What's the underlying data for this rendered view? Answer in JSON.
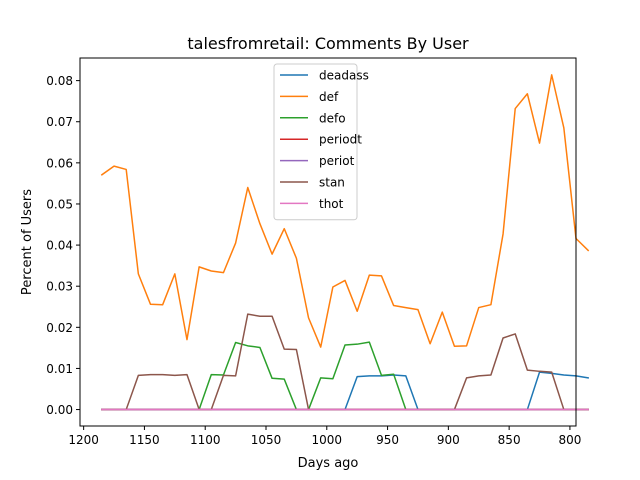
{
  "chart_data": {
    "type": "line",
    "title": "talesfromretail: Comments By User",
    "xlabel": "Days ago",
    "ylabel": "Percent of Users",
    "xlim": [
      1203,
      795
    ],
    "ylim": [
      -0.004,
      0.0855
    ],
    "x_inverted": true,
    "grid": false,
    "legend_position": "upper center",
    "xticks": [
      1200,
      1150,
      1100,
      1050,
      1000,
      950,
      900,
      850,
      800
    ],
    "xtick_labels": [
      "1200",
      "1150",
      "1100",
      "1050",
      "1000",
      "950",
      "900",
      "850",
      "800"
    ],
    "yticks": [
      0.0,
      0.01,
      0.02,
      0.03,
      0.04,
      0.05,
      0.06,
      0.07,
      0.08
    ],
    "ytick_labels": [
      "0.00",
      "0.01",
      "0.02",
      "0.03",
      "0.04",
      "0.05",
      "0.06",
      "0.07",
      "0.08"
    ],
    "x": [
      1185,
      1175,
      1165,
      1155,
      1145,
      1135,
      1125,
      1115,
      1105,
      1095,
      1085,
      1075,
      1065,
      1055,
      1045,
      1035,
      1025,
      1015,
      1005,
      995,
      985,
      975,
      965,
      955,
      945,
      935,
      925,
      915,
      905,
      895,
      885,
      875,
      865,
      855,
      845,
      835,
      825,
      815,
      805,
      795,
      785
    ],
    "series": [
      {
        "name": "deadass",
        "color": "#1f77b4",
        "values": [
          0,
          0,
          0,
          0,
          0,
          0,
          0,
          0,
          0,
          0,
          0,
          0,
          0,
          0,
          0,
          0,
          0,
          0,
          0,
          0,
          0,
          0.008,
          0.0082,
          0.0082,
          0.0084,
          0.0082,
          0,
          0,
          0,
          0,
          0,
          0,
          0,
          0,
          0,
          0,
          0.0091,
          0.0088,
          0.0084,
          0.0082,
          0.0077
        ]
      },
      {
        "name": "def",
        "color": "#ff7f0e",
        "values": [
          0.0571,
          0.0592,
          0.0584,
          0.033,
          0.0256,
          0.0255,
          0.033,
          0.017,
          0.0347,
          0.0337,
          0.0333,
          0.0405,
          0.054,
          0.0452,
          0.0378,
          0.044,
          0.0368,
          0.0223,
          0.0152,
          0.0298,
          0.0314,
          0.0239,
          0.0327,
          0.0325,
          0.0253,
          0.0248,
          0.0243,
          0.016,
          0.0237,
          0.0154,
          0.0155,
          0.0248,
          0.0255,
          0.0427,
          0.0732,
          0.0768,
          0.0648,
          0.0814,
          0.0685,
          0.0416,
          0.0387
        ]
      },
      {
        "name": "defo",
        "color": "#2ca02c",
        "values": [
          0,
          0,
          0,
          0,
          0,
          0,
          0,
          0,
          0,
          0.0085,
          0.0084,
          0.0163,
          0.0155,
          0.0151,
          0.0076,
          0.0074,
          0,
          0,
          0.0077,
          0.0075,
          0.0157,
          0.0159,
          0.0164,
          0.0083,
          0.0086,
          0,
          0,
          0,
          0,
          0,
          0,
          0,
          0,
          0,
          0,
          0,
          0,
          0,
          0,
          0,
          0
        ]
      },
      {
        "name": "periodt",
        "color": "#d62728",
        "values": [
          0,
          0,
          0,
          0,
          0,
          0,
          0,
          0,
          0,
          0,
          0,
          0,
          0,
          0,
          0,
          0,
          0,
          0,
          0,
          0,
          0,
          0,
          0,
          0,
          0,
          0,
          0,
          0,
          0,
          0,
          0,
          0,
          0,
          0,
          0,
          0,
          0,
          0,
          0,
          0,
          0
        ]
      },
      {
        "name": "periot",
        "color": "#9467bd",
        "values": [
          0,
          0,
          0,
          0,
          0,
          0,
          0,
          0,
          0,
          0,
          0,
          0,
          0,
          0,
          0,
          0,
          0,
          0,
          0,
          0,
          0,
          0,
          0,
          0,
          0,
          0,
          0,
          0,
          0,
          0,
          0,
          0,
          0,
          0,
          0,
          0,
          0,
          0,
          0,
          0,
          0
        ]
      },
      {
        "name": "stan",
        "color": "#8c564b",
        "values": [
          0,
          0,
          0,
          0.0083,
          0.0085,
          0.0085,
          0.0083,
          0.0085,
          0,
          0,
          0.0083,
          0.0082,
          0.0232,
          0.0227,
          0.0227,
          0.0147,
          0.0146,
          0,
          0,
          0,
          0,
          0,
          0,
          0,
          0,
          0,
          0,
          0,
          0,
          0,
          0.0077,
          0.0082,
          0.0084,
          0.0174,
          0.0184,
          0.0096,
          0.0093,
          0.0091,
          0,
          0,
          0
        ]
      },
      {
        "name": "thot",
        "color": "#e377c2",
        "values": [
          0,
          0,
          0,
          0,
          0,
          0,
          0,
          0,
          0,
          0,
          0,
          0,
          0,
          0,
          0,
          0,
          0,
          0,
          0,
          0,
          0,
          0,
          0,
          0,
          0,
          0,
          0,
          0,
          0,
          0,
          0,
          0,
          0,
          0,
          0,
          0,
          0,
          0,
          0,
          0,
          0
        ]
      }
    ]
  }
}
